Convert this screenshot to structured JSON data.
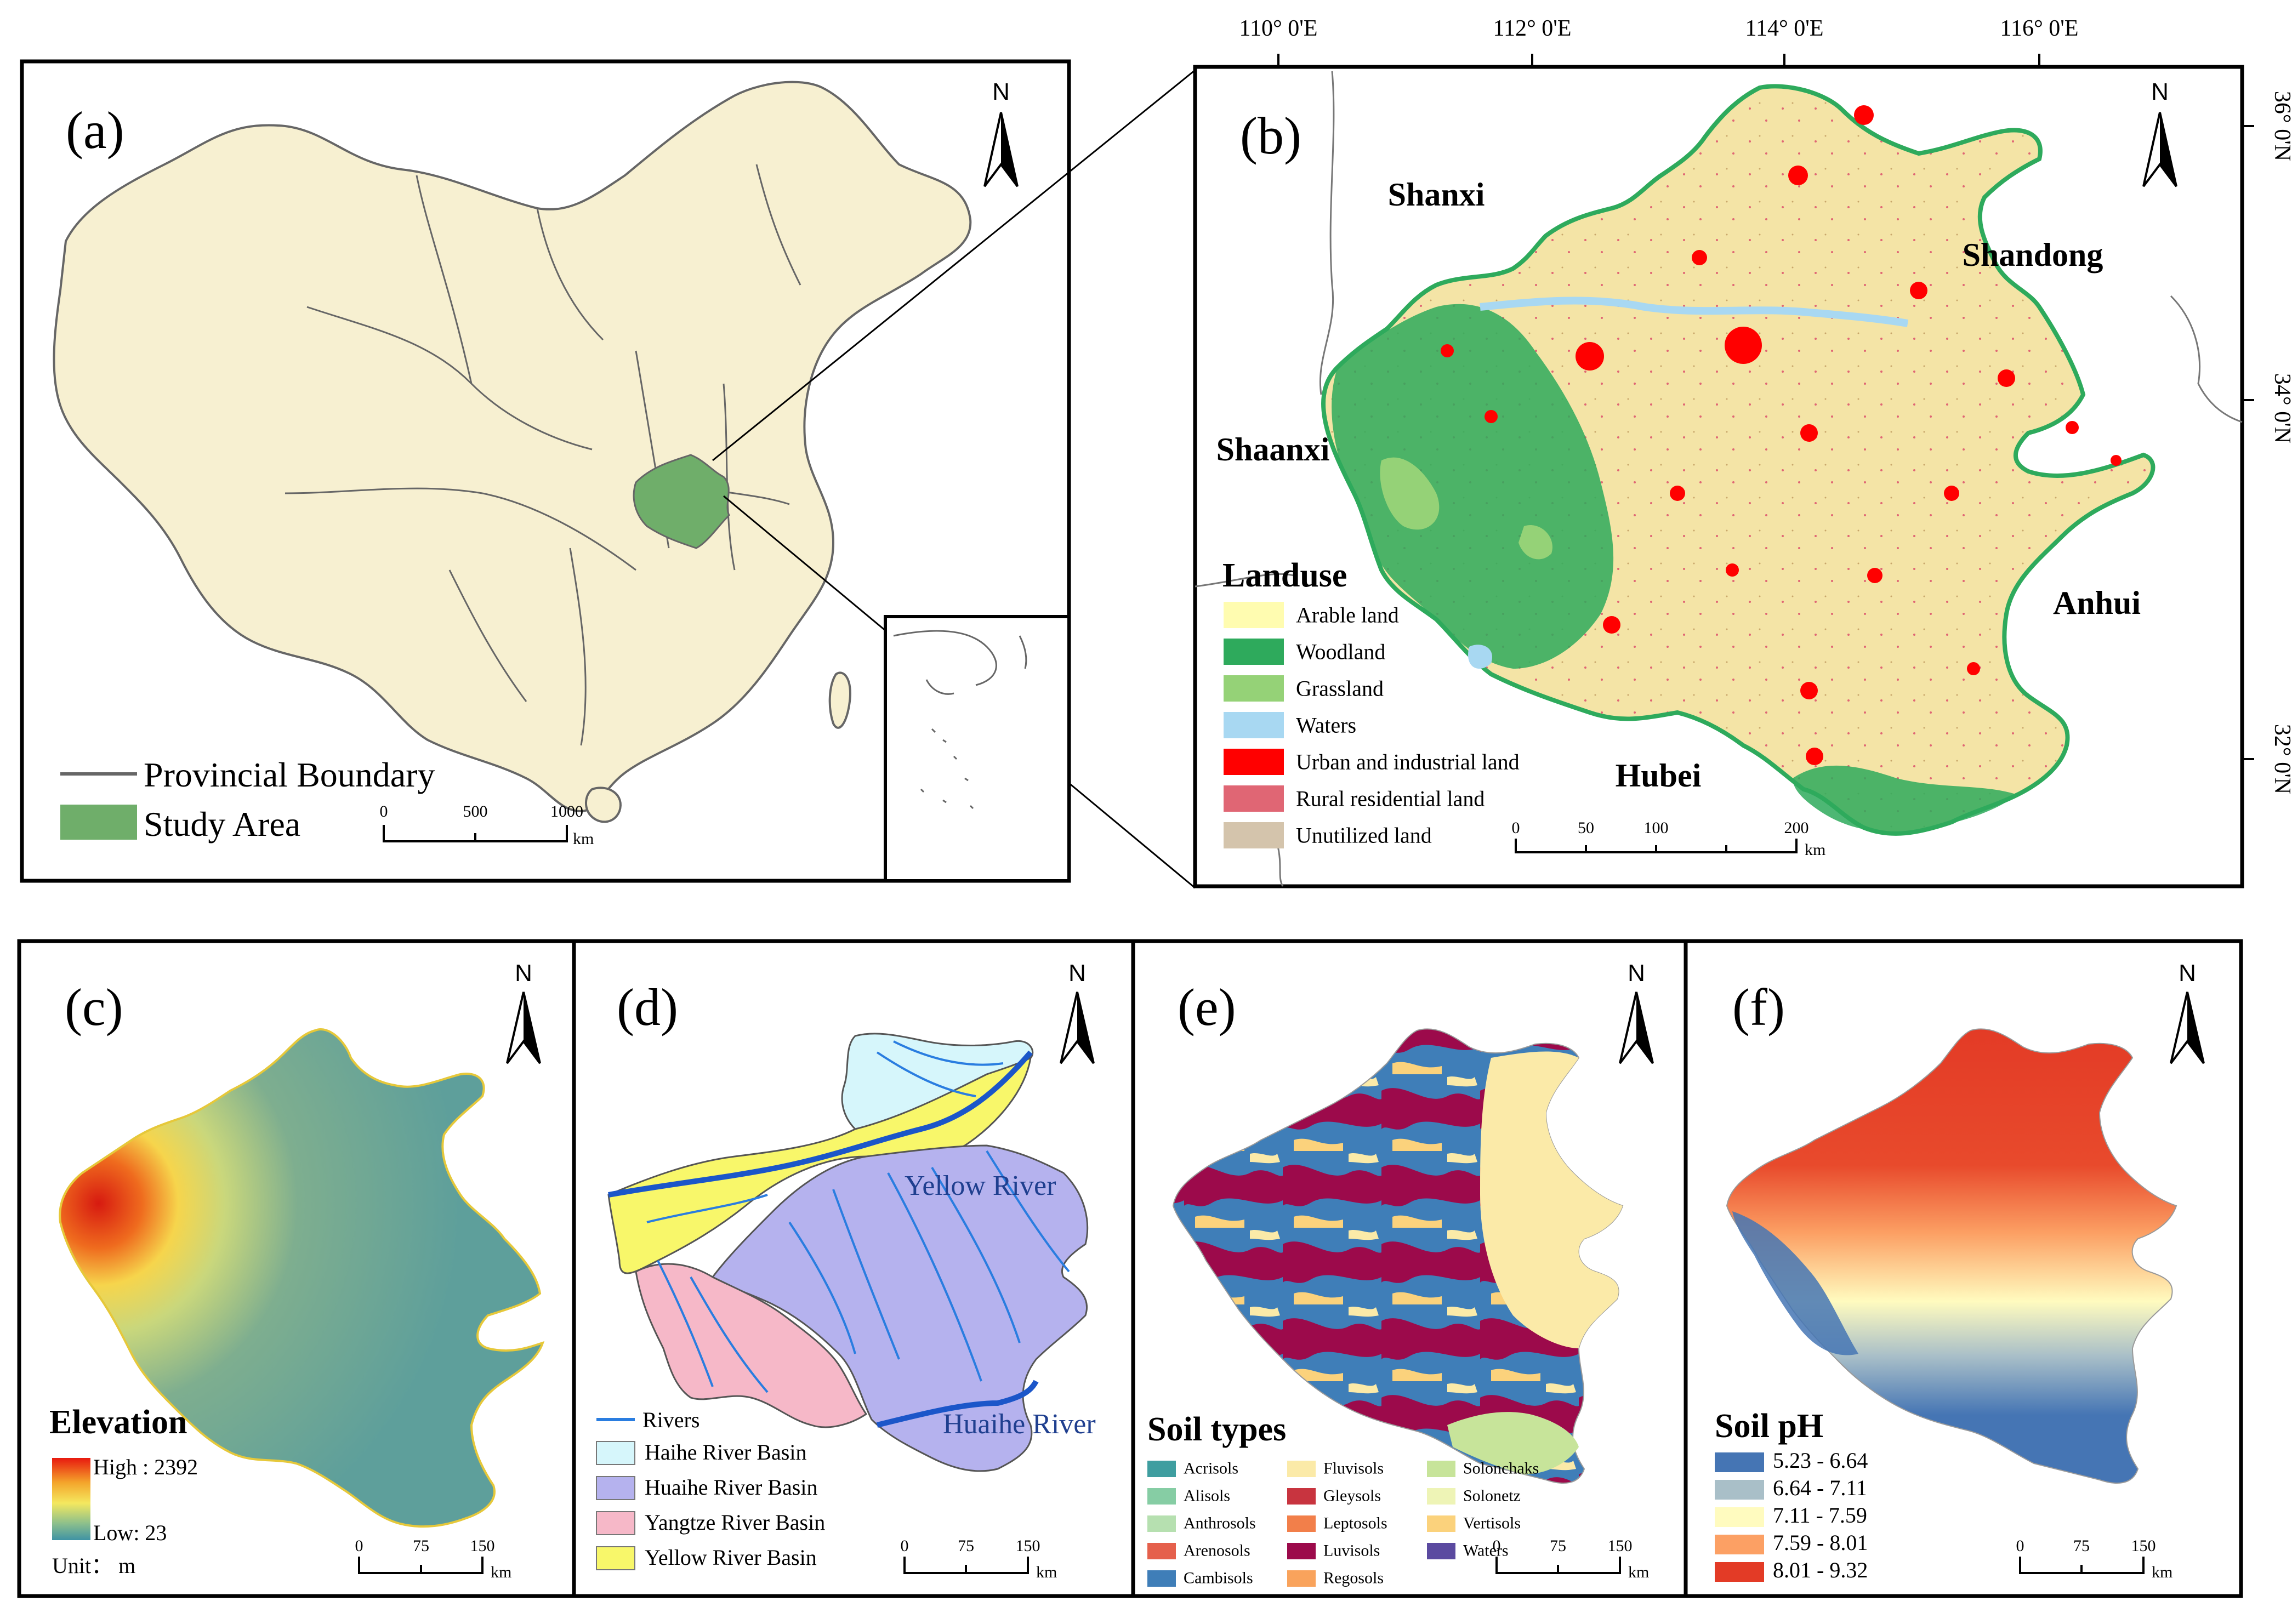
{
  "panels": {
    "a": {
      "label": "(a)",
      "legend": {
        "boundary": "Provincial Boundary",
        "study": "Study Area"
      },
      "scale": {
        "ticks": [
          "0",
          "500",
          "1000"
        ],
        "unit": "km"
      },
      "north": "N"
    },
    "b": {
      "label": "(b)",
      "lon_ticks": [
        "110° 0'E",
        "112° 0'E",
        "114° 0'E",
        "116° 0'E"
      ],
      "lat_ticks": [
        "36° 0'N",
        "34° 0'N",
        "32° 0'N"
      ],
      "provinces": {
        "shanxi": "Shanxi",
        "shandong": "Shandong",
        "shaanxi": "Shaanxi",
        "anhui": "Anhui",
        "hubei": "Hubei"
      },
      "legend_title": "Landuse",
      "legend": [
        {
          "name": "Arable land",
          "color": "#fffcb0"
        },
        {
          "name": "Woodland",
          "color": "#2eaa5c"
        },
        {
          "name": "Grassland",
          "color": "#95d277"
        },
        {
          "name": "Waters",
          "color": "#a8d8f2"
        },
        {
          "name": "Urban and industrial land",
          "color": "#ff0000"
        },
        {
          "name": "Rural residential land",
          "color": "#e06674"
        },
        {
          "name": "Unutilized land",
          "color": "#d4c4ac"
        }
      ],
      "scale": {
        "ticks": [
          "0",
          "50",
          "100",
          "200"
        ],
        "unit": "km"
      },
      "north": "N"
    },
    "c": {
      "label": "(c)",
      "legend_title": "Elevation",
      "high": "High : 2392",
      "low": "Low: 23",
      "unit": "Unit： m",
      "scale": {
        "ticks": [
          "0",
          "75",
          "150"
        ],
        "unit": "km"
      },
      "north": "N"
    },
    "d": {
      "label": "(d)",
      "rivers_label": "Rivers",
      "yellow_river": "Yellow River",
      "huaihe_river": "Huaihe River",
      "legend": [
        {
          "name": "Haihe River Basin",
          "color": "#d6f6fb"
        },
        {
          "name": "Huaihe River Basin",
          "color": "#b5b2ee"
        },
        {
          "name": "Yangtze River Basin",
          "color": "#f6b8c8"
        },
        {
          "name": "Yellow River Basin",
          "color": "#f8f76a"
        }
      ],
      "river_color": "#2a7de0",
      "scale": {
        "ticks": [
          "0",
          "75",
          "150"
        ],
        "unit": "km"
      },
      "north": "N"
    },
    "e": {
      "label": "(e)",
      "legend_title": "Soil types",
      "legend": [
        {
          "name": "Acrisols",
          "color": "#3f9ea0"
        },
        {
          "name": "Alisols",
          "color": "#86cda4"
        },
        {
          "name": "Anthrosols",
          "color": "#b6e0b0"
        },
        {
          "name": "Arenosols",
          "color": "#e5604c"
        },
        {
          "name": "Cambisols",
          "color": "#3f7eb8"
        },
        {
          "name": "Fluvisols",
          "color": "#fbeaa8"
        },
        {
          "name": "Gleysols",
          "color": "#c8343f"
        },
        {
          "name": "Leptosols",
          "color": "#f27f4a"
        },
        {
          "name": "Luvisols",
          "color": "#9c0a4b"
        },
        {
          "name": "Regosols",
          "color": "#f9a35c"
        },
        {
          "name": "Solonchaks",
          "color": "#c7e49a"
        },
        {
          "name": "Solonetz",
          "color": "#eef4b6"
        },
        {
          "name": "Vertisols",
          "color": "#fbd27c"
        },
        {
          "name": "Waters",
          "color": "#5b4aa0"
        }
      ],
      "scale": {
        "ticks": [
          "0",
          "75",
          "150"
        ],
        "unit": "km"
      },
      "north": "N"
    },
    "f": {
      "label": "(f)",
      "legend_title": "Soil pH",
      "legend": [
        {
          "name": "5.23 - 6.64",
          "color": "#4575b4"
        },
        {
          "name": "6.64 - 7.11",
          "color": "#a9bfc8"
        },
        {
          "name": "7.11 - 7.59",
          "color": "#fffbbf"
        },
        {
          "name": "7.59 - 8.01",
          "color": "#fca064"
        },
        {
          "name": "8.01 - 9.32",
          "color": "#e33b26"
        }
      ],
      "scale": {
        "ticks": [
          "0",
          "75",
          "150"
        ],
        "unit": "km"
      },
      "north": "N"
    }
  }
}
